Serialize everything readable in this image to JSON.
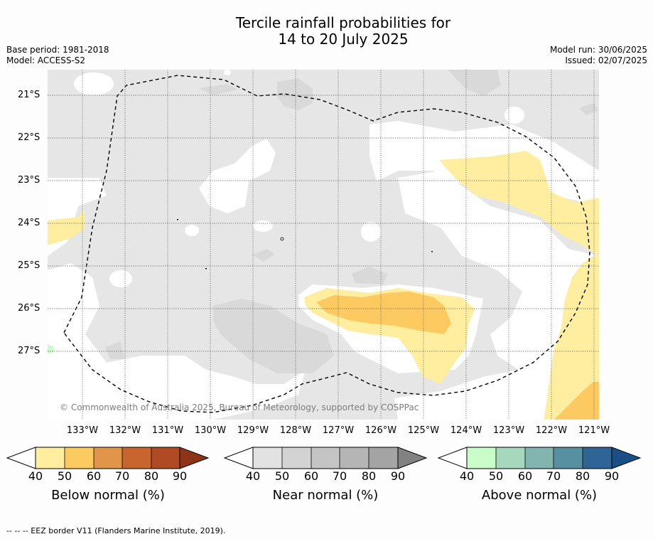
{
  "title_line1": "Tercile rainfall probabilities for",
  "title_line2": "14 to 20 July 2025",
  "meta": {
    "base_period": "Base period: 1981-2018",
    "model": "Model: ACCESS-S2",
    "model_run": "Model run: 30/06/2025",
    "issued": "Issued: 02/07/2025"
  },
  "map": {
    "lat_labels": [
      "21°S",
      "22°S",
      "23°S",
      "24°S",
      "25°S",
      "26°S",
      "27°S"
    ],
    "lon_labels": [
      "133°W",
      "132°W",
      "131°W",
      "130°W",
      "129°W",
      "128°W",
      "127°W",
      "126°W",
      "125°W",
      "124°W",
      "123°W",
      "122°W",
      "121°W"
    ],
    "copyright": "© Commonwealth of Australia 2025, Bureau of Meteorology, supported by COSPPac"
  },
  "colorbars": [
    {
      "label": "Below normal (%)",
      "ticks": [
        "40",
        "50",
        "60",
        "70",
        "80",
        "90"
      ],
      "colors": [
        "#ffeea0",
        "#fdca62",
        "#e0954a",
        "#c8642e",
        "#af4a25",
        "#8c3318"
      ]
    },
    {
      "label": "Near normal (%)",
      "ticks": [
        "40",
        "50",
        "60",
        "70",
        "80",
        "90"
      ],
      "colors": [
        "#e2e2e2",
        "#d3d3d3",
        "#c4c4c4",
        "#b5b5b5",
        "#a4a4a4",
        "#828282"
      ]
    },
    {
      "label": "Above normal (%)",
      "ticks": [
        "40",
        "50",
        "60",
        "70",
        "80",
        "90"
      ],
      "colors": [
        "#c9fcc9",
        "#a6d8bd",
        "#82b5b0",
        "#5790a0",
        "#2f6596",
        "#1a4f86"
      ]
    }
  ],
  "footnote": "--  --  -- EEZ border V11 (Flanders Marine Institute, 2019)."
}
